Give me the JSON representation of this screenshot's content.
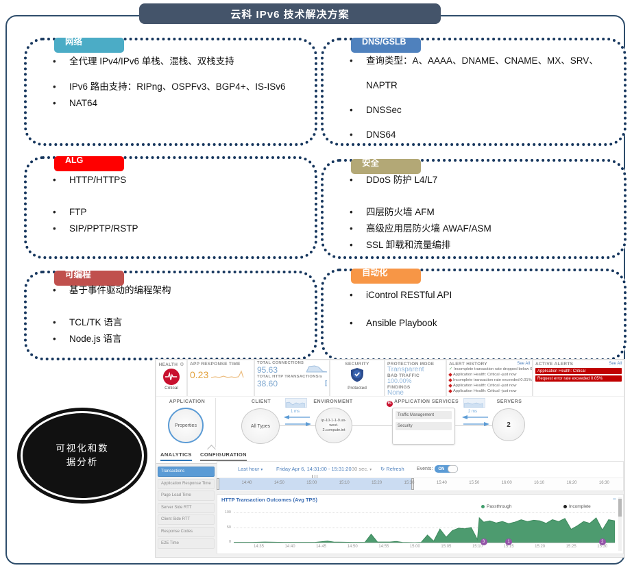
{
  "title": "云科 IPv6 技术解决方案",
  "feature_boxes": [
    {
      "tab": "网络",
      "tab_color": "#4BACC6",
      "items": [
        "全代理 IPv4/IPv6 单栈、混栈、双栈支持",
        "IPv6 路由支持：RIPng、OSPFv3、BGP4+、IS-ISv6",
        "NAT64"
      ]
    },
    {
      "tab": "DNS/GSLB",
      "tab_color": "#4F81BD",
      "items": [
        "查询类型：A、AAAA、DNAME、CNAME、MX、SRV、NAPTR",
        "DNSSec",
        "DNS64"
      ]
    },
    {
      "tab": "ALG",
      "tab_color": "#FF0000",
      "items": [
        "HTTP/HTTPS",
        "FTP",
        "SIP/PPTP/RSTP"
      ]
    },
    {
      "tab": "安全",
      "tab_color": "#B3A876",
      "items": [
        "DDoS 防护 L4/L7",
        "四层防火墙 AFM",
        "高级应用层防火墙 AWAF/ASM",
        "SSL 卸载和流量编排"
      ]
    },
    {
      "tab": "可编程",
      "tab_color": "#C0504D",
      "items": [
        "基于事件驱动的编程架构",
        "TCL/TK 语言",
        "Node.js 语言"
      ]
    },
    {
      "tab": "自动化",
      "tab_color": "#F79646",
      "items": [
        "iControl RESTful API",
        "Ansible Playbook"
      ]
    }
  ],
  "ellipse": {
    "line1": "可视化和数",
    "line2": "据分析"
  },
  "dashboard": {
    "health": {
      "label": "HEALTH",
      "status": "Critical"
    },
    "app_response_time": {
      "label": "APP RESPONSE TIME",
      "value": "0.23"
    },
    "total_connections": {
      "label": "TOTAL CONNECTIONS",
      "value": "95.63"
    },
    "total_http": {
      "label": "TOTAL HTTP TRANSACTIONS/s",
      "value": "38.60"
    },
    "security": {
      "label": "SECURITY",
      "status": "Protected"
    },
    "protection": {
      "mode_label": "PROTECTION MODE",
      "mode": "Transparent",
      "bad_label": "BAD TRAFFIC",
      "bad": "100.00%",
      "findings_label": "FINDINGS",
      "findings": "None"
    },
    "alert_history": {
      "label": "ALERT HISTORY",
      "see_all": "See All",
      "items": [
        {
          "icon": "check",
          "text": "Incomplete transaction rate dropped below 0... -just now"
        },
        {
          "icon": "alert",
          "text": "Application Health: Critical -just now"
        },
        {
          "icon": "alert",
          "text": "Incomplete transaction rate exceeded 0.01% -just now"
        },
        {
          "icon": "alert",
          "text": "Application Health: Critical -just now"
        },
        {
          "icon": "alert",
          "text": "Application Health: Critical -just now"
        }
      ]
    },
    "active_alerts": {
      "label": "ACTIVE ALERTS",
      "see_all": "See All",
      "items": [
        "Application Health: Critical",
        "Request error rate exceeded 0.05%"
      ]
    },
    "map": {
      "application_label": "APPLICATION",
      "application_node": "Properties",
      "client_label": "CLIENT",
      "client_node": "All Types",
      "client_latency": "1 ms",
      "environment_label": "ENVIRONMENT",
      "environment_node": "ip-10-1-1-9.us-west-2.compute.int",
      "services_label": "APPLICATION SERVICES",
      "services": [
        "Traffic Management",
        "Security"
      ],
      "services_latency": "2 ms",
      "servers_label": "SERVERS",
      "servers_count": "2"
    },
    "analytics": {
      "tabs": [
        "ANALYTICS",
        "CONFIGURATION"
      ],
      "sidebar": [
        "Transactions",
        "Application Response Time",
        "Page Load Time",
        "Server Side RTT",
        "Client Side RTT",
        "Response Codes",
        "E2E Time"
      ],
      "range_label": "Last hour",
      "date_range": "Friday Apr 6, 14:31:00 - 15:31:20",
      "interval": "30 sec.",
      "refresh_label": "Refresh",
      "events_label": "Events:",
      "events_state": "ON",
      "chart_minimize": "−",
      "timeline_ticks": [
        "14:40",
        "14:50",
        "15:00",
        "15:10",
        "15:20",
        "15:30",
        "15:40",
        "15:50",
        "16:00",
        "16:10",
        "16:20",
        "16:30"
      ]
    }
  },
  "chart_data": {
    "type": "area",
    "title": "HTTP Transaction Outcomes (Avg TPS)",
    "xlabel": "",
    "ylabel": "",
    "ylim": [
      0,
      100
    ],
    "yticks": [
      0,
      50,
      100
    ],
    "xticks": [
      "14:35",
      "14:40",
      "14:45",
      "14:50",
      "14:55",
      "15:00",
      "15:05",
      "15:10",
      "15:15",
      "15:20",
      "15:25",
      "15:30"
    ],
    "x_domain_minutes": 61,
    "legend": [
      {
        "name": "Passthrough",
        "color": "#3f9c6b"
      },
      {
        "name": "Incomplete",
        "color": "#222222"
      }
    ],
    "series": [
      {
        "name": "Passthrough",
        "points": [
          [
            0,
            1
          ],
          [
            3,
            1
          ],
          [
            5,
            2
          ],
          [
            8,
            1
          ],
          [
            11,
            1
          ],
          [
            13,
            1
          ],
          [
            15,
            5
          ],
          [
            16,
            2
          ],
          [
            19,
            1
          ],
          [
            21,
            1
          ],
          [
            22,
            28
          ],
          [
            23,
            2
          ],
          [
            25,
            2
          ],
          [
            26,
            4
          ],
          [
            27,
            1
          ],
          [
            29,
            0
          ],
          [
            30,
            1
          ],
          [
            31,
            25
          ],
          [
            32,
            5
          ],
          [
            33,
            45
          ],
          [
            34,
            18
          ],
          [
            35,
            40
          ],
          [
            36,
            48
          ],
          [
            37,
            46
          ],
          [
            38,
            50
          ],
          [
            39,
            10
          ],
          [
            39.3,
            82
          ],
          [
            40,
            68
          ],
          [
            41,
            72
          ],
          [
            42,
            65
          ],
          [
            43,
            70
          ],
          [
            44,
            63
          ],
          [
            45,
            68
          ],
          [
            46,
            76
          ],
          [
            47,
            70
          ],
          [
            48,
            74
          ],
          [
            49,
            72
          ],
          [
            50,
            64
          ],
          [
            51,
            76
          ],
          [
            52,
            70
          ],
          [
            53,
            80
          ],
          [
            54,
            44
          ],
          [
            55,
            56
          ],
          [
            56,
            70
          ],
          [
            57,
            64
          ],
          [
            58,
            82
          ],
          [
            59,
            42
          ],
          [
            60,
            76
          ],
          [
            61,
            72
          ]
        ]
      }
    ],
    "event_markers": [
      {
        "time": "15:11",
        "m": 40,
        "label": "3"
      },
      {
        "time": "15:15",
        "m": 44,
        "label": "1"
      },
      {
        "time": "15:30",
        "m": 59,
        "label": "2"
      }
    ]
  }
}
